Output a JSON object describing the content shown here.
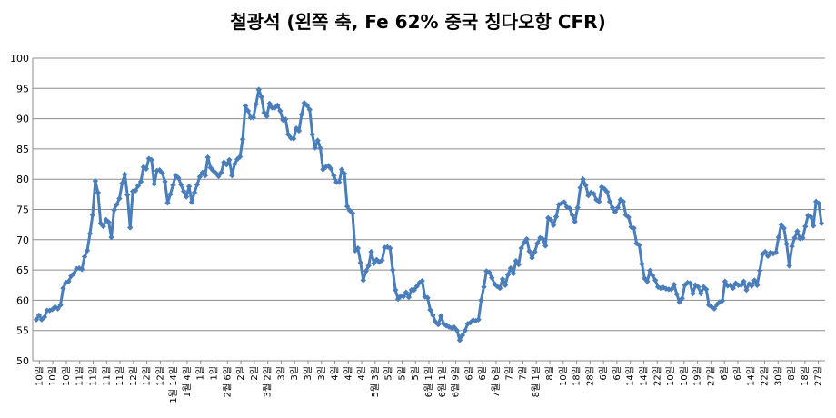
{
  "chart_data": {
    "type": "line",
    "title": "철광석 (왼쪽 축, Fe 62% 중국 칭다오항 CFR)",
    "xlabel": "",
    "ylabel": "",
    "ylim": [
      50,
      100
    ],
    "yticks": [
      50,
      55,
      60,
      65,
      70,
      75,
      80,
      85,
      90,
      95,
      100
    ],
    "grid": "horizontal",
    "legend": "none",
    "x_tick_labels": [
      "10일",
      "10일",
      "10일",
      "11일",
      "11일",
      "11일",
      "11일",
      "12일",
      "12일",
      "12일",
      "1월 14일",
      "1월 4일",
      "1일",
      "1일",
      "2월 6일",
      "2일",
      "2일",
      "3월 2일",
      "3일",
      "3일",
      "3일",
      "3일",
      "4일",
      "4일",
      "4일",
      "5월 3일",
      "5일",
      "5일",
      "5일",
      "6월 1일",
      "6월 1일",
      "6월 9일",
      "6일",
      "6일",
      "7월 6일",
      "7일",
      "7일",
      "8월 1일",
      "8일",
      "10일",
      "18일",
      "28일",
      "6일",
      "6일",
      "14일",
      "14일",
      "22일",
      "10일",
      "10일",
      "19일",
      "27일",
      "6일",
      "6일",
      "14일",
      "22일",
      "30일",
      "8일",
      "18일",
      "27일"
    ],
    "series": [
      {
        "color": "#4A7EBB",
        "values": [
          56.8,
          57.5,
          56.8,
          57.2,
          58.3,
          58.3,
          58.5,
          58.9,
          58.6,
          59.2,
          62.0,
          62.9,
          63.1,
          64.0,
          64.4,
          65.2,
          65.3,
          65.1,
          67.2,
          68.2,
          71.0,
          74.1,
          79.7,
          77.8,
          72.7,
          72.2,
          73.3,
          72.9,
          70.4,
          74.9,
          75.8,
          76.8,
          79.3,
          80.8,
          77.4,
          72.0,
          78.0,
          78.1,
          78.9,
          79.6,
          82.0,
          81.7,
          83.4,
          83.2,
          79.2,
          81.4,
          81.5,
          81.0,
          79.6,
          76.1,
          77.5,
          79.0,
          80.6,
          80.2,
          79.1,
          78.0,
          77.1,
          78.8,
          76.2,
          77.8,
          79.1,
          80.4,
          81.1,
          80.6,
          83.6,
          81.9,
          81.4,
          81.0,
          80.5,
          81.1,
          82.8,
          82.4,
          83.2,
          80.6,
          82.5,
          83.3,
          83.7,
          86.6,
          92.1,
          91.3,
          90.2,
          90.2,
          92.4,
          94.8,
          93.6,
          91.0,
          90.4,
          92.5,
          91.8,
          91.8,
          92.2,
          91.3,
          89.8,
          89.9,
          87.4,
          86.8,
          86.7,
          88.4,
          88.0,
          90.7,
          92.6,
          92.2,
          91.5,
          87.4,
          85.2,
          86.4,
          85.1,
          81.6,
          82.0,
          82.2,
          81.7,
          80.6,
          79.5,
          79.5,
          81.6,
          80.9,
          75.5,
          74.8,
          74.4,
          68.2,
          68.6,
          66.2,
          63.3,
          64.8,
          65.7,
          68.0,
          66.1,
          66.7,
          66.3,
          66.6,
          68.7,
          68.8,
          68.6,
          65.0,
          61.7,
          60.2,
          60.7,
          60.6,
          61.3,
          60.5,
          61.7,
          61.7,
          62.3,
          62.9,
          63.2,
          60.6,
          60.4,
          58.4,
          57.5,
          56.4,
          56.0,
          57.4,
          56.1,
          55.8,
          55.6,
          55.4,
          55.5,
          55.0,
          53.4,
          54.2,
          55.0,
          56.1,
          56.3,
          56.7,
          56.6,
          56.8,
          60.0,
          62.2,
          64.8,
          64.6,
          63.7,
          62.7,
          62.3,
          62.0,
          63.5,
          62.5,
          64.2,
          65.3,
          64.4,
          66.5,
          65.9,
          68.6,
          69.5,
          70.1,
          68.1,
          67.0,
          68.0,
          69.4,
          70.3,
          70.1,
          69.0,
          73.6,
          73.3,
          72.4,
          73.8,
          75.8,
          76.0,
          76.2,
          75.4,
          75.2,
          74.1,
          73.0,
          75.3,
          78.6,
          80.0,
          79.0,
          77.3,
          77.8,
          77.6,
          76.6,
          76.3,
          78.7,
          78.4,
          77.9,
          76.3,
          75.3,
          74.6,
          75.3,
          76.6,
          76.3,
          74.1,
          73.7,
          72.1,
          71.9,
          69.4,
          69.1,
          66.0,
          63.6,
          63.1,
          64.9,
          64.1,
          63.3,
          62.2,
          62.0,
          62.1,
          61.9,
          61.8,
          61.8,
          62.6,
          61.0,
          59.7,
          60.3,
          62.5,
          62.9,
          62.8,
          61.1,
          62.5,
          62.2,
          61.1,
          62.2,
          61.8,
          59.2,
          58.9,
          58.6,
          59.3,
          59.7,
          59.9,
          63.1,
          62.4,
          62.5,
          62.0,
          62.8,
          62.5,
          62.5,
          63.1,
          61.7,
          62.7,
          62.4,
          63.3,
          62.5,
          64.9,
          67.6,
          68.0,
          67.3,
          67.9,
          67.7,
          67.9,
          70.4,
          72.5,
          71.9,
          69.3,
          65.7,
          68.9,
          70.3,
          71.4,
          70.2,
          70.3,
          72.2,
          74.0,
          73.8,
          72.3,
          76.3,
          76.0,
          72.7
        ]
      }
    ]
  }
}
